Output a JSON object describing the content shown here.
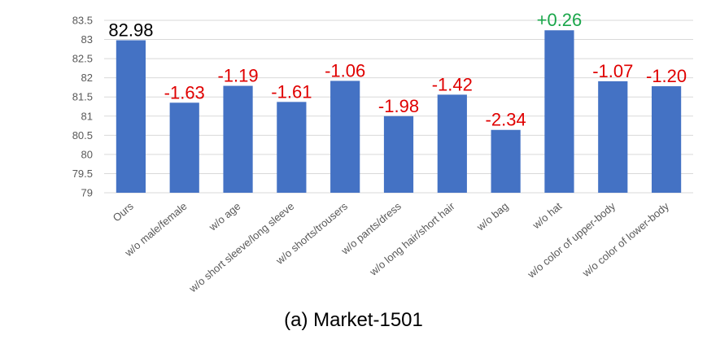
{
  "chart_data": {
    "type": "bar",
    "categories": [
      "Ours",
      "w/o male/female",
      "w/o age",
      "w/o short sleeve/long sleeve",
      "w/o shorts/trousers",
      "w/o pants/dress",
      "w/o long hair/short hair",
      "w/o bag",
      "w/o hat",
      "w/o color of upper-body",
      "w/o color of lower-body"
    ],
    "values": [
      82.98,
      81.35,
      81.79,
      81.37,
      81.92,
      81.0,
      81.56,
      80.64,
      83.24,
      81.91,
      81.78
    ],
    "data_labels": [
      "82.98",
      "-1.63",
      "-1.19",
      "-1.61",
      "-1.06",
      "-1.98",
      "-1.42",
      "-2.34",
      "+0.26",
      "-1.07",
      "-1.20"
    ],
    "label_colors": [
      "#000000",
      "#e00000",
      "#e00000",
      "#e00000",
      "#e00000",
      "#e00000",
      "#e00000",
      "#e00000",
      "#1aa64a",
      "#e00000",
      "#e00000"
    ],
    "bar_color": "#4472c4",
    "ylim": [
      79,
      83.5
    ],
    "yticks": [
      "79",
      "79.5",
      "80",
      "80.5",
      "81",
      "81.5",
      "82",
      "82.5",
      "83",
      "83.5"
    ],
    "grid": true,
    "caption": "(a) Market-1501"
  }
}
